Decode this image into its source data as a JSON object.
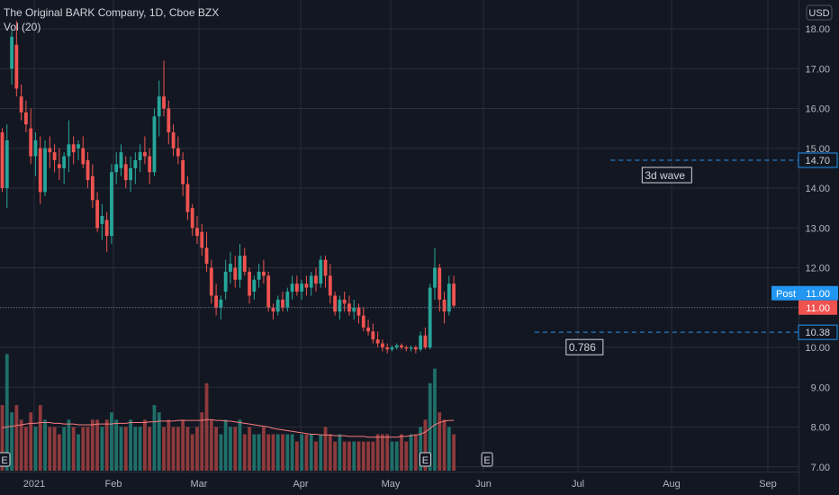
{
  "header": {
    "symbol_line": "The Original BARK Company, 1D, Cboe BZX",
    "volume_label": "Vol (20)",
    "currency": "USD"
  },
  "chart_data": {
    "type": "candlestick",
    "y_ticks": [
      "18.00",
      "17.00",
      "16.00",
      "15.00",
      "14.00",
      "13.00",
      "12.00",
      "11.00",
      "10.00",
      "9.00",
      "8.00",
      "7.00"
    ],
    "x_ticks": [
      "2021",
      "Feb",
      "Mar",
      "Apr",
      "May",
      "Jun",
      "Jul",
      "Aug",
      "Sep"
    ],
    "ylim": [
      6.85,
      18.3
    ],
    "colors": {
      "up": "#26a69a",
      "down": "#ef5350",
      "vol_ma": "#f77c80",
      "level": "#2196f3",
      "badge": "#2196f3",
      "crosshair": "#9598a1"
    },
    "candles": [
      [
        15.4,
        15.5,
        13.9,
        14.0
      ],
      [
        14.0,
        15.6,
        13.5,
        15.2
      ],
      [
        17.0,
        18.0,
        16.6,
        17.8
      ],
      [
        17.6,
        18.2,
        16.3,
        16.5
      ],
      [
        16.3,
        16.6,
        15.7,
        15.9
      ],
      [
        15.9,
        16.2,
        15.4,
        15.6
      ],
      [
        15.5,
        16.0,
        14.6,
        14.8
      ],
      [
        14.8,
        15.4,
        14.3,
        15.2
      ],
      [
        15.0,
        15.3,
        13.6,
        13.9
      ],
      [
        13.9,
        15.2,
        13.8,
        15.0
      ],
      [
        15.0,
        15.3,
        14.5,
        14.9
      ],
      [
        14.9,
        15.1,
        14.4,
        14.7
      ],
      [
        14.6,
        15.0,
        14.2,
        14.5
      ],
      [
        14.5,
        14.9,
        14.1,
        14.8
      ],
      [
        14.8,
        15.7,
        14.4,
        15.1
      ],
      [
        15.1,
        15.3,
        14.6,
        14.9
      ],
      [
        15.0,
        15.2,
        14.7,
        15.1
      ],
      [
        15.0,
        15.3,
        14.5,
        14.6
      ],
      [
        14.7,
        14.9,
        14.0,
        14.2
      ],
      [
        14.3,
        14.6,
        13.5,
        13.7
      ],
      [
        13.7,
        13.9,
        12.9,
        13.0
      ],
      [
        13.1,
        13.6,
        12.7,
        13.3
      ],
      [
        13.2,
        13.4,
        12.4,
        12.8
      ],
      [
        12.8,
        14.6,
        12.6,
        14.4
      ],
      [
        14.4,
        14.9,
        14.1,
        14.6
      ],
      [
        14.5,
        15.1,
        14.3,
        14.9
      ],
      [
        14.6,
        14.8,
        14.0,
        14.2
      ],
      [
        14.2,
        14.8,
        13.9,
        14.5
      ],
      [
        14.5,
        14.9,
        14.1,
        14.7
      ],
      [
        14.7,
        15.1,
        14.4,
        14.9
      ],
      [
        14.9,
        15.3,
        14.6,
        14.8
      ],
      [
        14.8,
        15.0,
        14.1,
        14.4
      ],
      [
        14.4,
        16.0,
        14.3,
        15.8
      ],
      [
        15.8,
        16.7,
        15.3,
        16.3
      ],
      [
        16.3,
        17.2,
        15.8,
        16.0
      ],
      [
        16.0,
        16.2,
        15.1,
        15.4
      ],
      [
        15.4,
        15.6,
        14.8,
        15.0
      ],
      [
        15.0,
        15.3,
        14.6,
        14.8
      ],
      [
        14.7,
        14.9,
        13.8,
        14.1
      ],
      [
        14.1,
        14.3,
        13.2,
        13.4
      ],
      [
        13.5,
        13.6,
        12.8,
        13.0
      ],
      [
        13.0,
        13.3,
        12.6,
        12.8
      ],
      [
        12.9,
        13.1,
        12.3,
        12.5
      ],
      [
        12.5,
        12.9,
        11.9,
        12.1
      ],
      [
        12.0,
        12.2,
        11.1,
        11.3
      ],
      [
        11.3,
        11.6,
        10.8,
        11.0
      ],
      [
        11.0,
        11.3,
        10.7,
        11.2
      ],
      [
        11.4,
        12.2,
        11.2,
        11.9
      ],
      [
        11.9,
        12.4,
        11.6,
        12.1
      ],
      [
        12.0,
        12.3,
        11.5,
        11.7
      ],
      [
        11.7,
        12.6,
        11.5,
        12.3
      ],
      [
        12.3,
        12.5,
        11.8,
        11.9
      ],
      [
        11.9,
        12.0,
        11.1,
        11.3
      ],
      [
        11.4,
        11.8,
        11.2,
        11.7
      ],
      [
        11.7,
        12.1,
        11.5,
        11.9
      ],
      [
        11.9,
        12.2,
        11.6,
        11.8
      ],
      [
        11.8,
        11.9,
        10.9,
        11.0
      ],
      [
        11.0,
        11.1,
        10.7,
        10.9
      ],
      [
        10.9,
        11.3,
        10.8,
        11.2
      ],
      [
        11.2,
        11.4,
        10.9,
        11.0
      ],
      [
        11.0,
        11.5,
        10.9,
        11.4
      ],
      [
        11.4,
        11.8,
        11.2,
        11.6
      ],
      [
        11.6,
        11.8,
        11.3,
        11.4
      ],
      [
        11.4,
        11.7,
        11.2,
        11.6
      ],
      [
        11.6,
        11.8,
        11.3,
        11.5
      ],
      [
        11.5,
        11.9,
        11.3,
        11.8
      ],
      [
        11.8,
        12.0,
        11.4,
        11.6
      ],
      [
        11.6,
        12.3,
        11.5,
        12.2
      ],
      [
        12.2,
        12.3,
        11.5,
        11.8
      ],
      [
        11.8,
        12.1,
        11.1,
        11.3
      ],
      [
        11.3,
        11.4,
        10.8,
        10.9
      ],
      [
        10.9,
        11.3,
        10.7,
        11.2
      ],
      [
        11.2,
        11.4,
        10.9,
        11.1
      ],
      [
        11.1,
        11.3,
        10.8,
        10.9
      ],
      [
        10.9,
        11.2,
        10.7,
        11.0
      ],
      [
        11.0,
        11.1,
        10.6,
        10.8
      ],
      [
        10.8,
        11.0,
        10.4,
        10.5
      ],
      [
        10.5,
        10.7,
        10.3,
        10.4
      ],
      [
        10.4,
        10.6,
        10.1,
        10.2
      ],
      [
        10.2,
        10.4,
        10.0,
        10.1
      ],
      [
        10.1,
        10.2,
        9.9,
        10.0
      ],
      [
        10.0,
        10.1,
        9.85,
        9.95
      ],
      [
        9.95,
        10.05,
        9.9,
        10.0
      ],
      [
        10.0,
        10.1,
        9.95,
        10.05
      ],
      [
        10.05,
        10.1,
        9.95,
        10.0
      ],
      [
        10.0,
        10.05,
        9.9,
        9.97
      ],
      [
        9.97,
        10.05,
        9.9,
        10.0
      ],
      [
        10.0,
        10.05,
        9.85,
        9.95
      ],
      [
        9.95,
        10.4,
        9.9,
        10.3
      ],
      [
        10.3,
        10.5,
        9.95,
        10.0
      ],
      [
        10.0,
        11.6,
        9.95,
        11.5
      ],
      [
        11.5,
        12.5,
        11.2,
        12.0
      ],
      [
        12.0,
        12.1,
        10.9,
        11.2
      ],
      [
        11.2,
        11.4,
        10.6,
        10.9
      ],
      [
        10.9,
        11.8,
        10.8,
        11.6
      ],
      [
        11.6,
        11.8,
        11.0,
        11.05
      ]
    ],
    "volumes": [
      9,
      16,
      8,
      9,
      7,
      6,
      8,
      6,
      9,
      7,
      6,
      6,
      5,
      6,
      7,
      6,
      5,
      6,
      6,
      7,
      7,
      6,
      7,
      8,
      7,
      6,
      6,
      7,
      6,
      6,
      7,
      6,
      9,
      8,
      6,
      7,
      6,
      6,
      7,
      6,
      5,
      6,
      8,
      12,
      7,
      6,
      5,
      7,
      6,
      6,
      7,
      5,
      6,
      5,
      5,
      6,
      5,
      5,
      5,
      5,
      5,
      5,
      4,
      5,
      5,
      5,
      4,
      5,
      6,
      5,
      4,
      5,
      4,
      4,
      4,
      4,
      4,
      4,
      4,
      5,
      5,
      5,
      4,
      4,
      5,
      4,
      5,
      5,
      6,
      7,
      12,
      14,
      8,
      7,
      6,
      5
    ],
    "volume_ma": [
      5.9,
      6.0,
      6.1,
      6.2,
      6.3,
      6.4,
      6.5,
      6.5,
      6.6,
      6.6,
      6.6,
      6.5,
      6.5,
      6.4,
      6.4,
      6.4,
      6.3,
      6.3,
      6.3,
      6.3,
      6.4,
      6.4,
      6.4,
      6.4,
      6.5,
      6.5,
      6.5,
      6.6,
      6.6,
      6.6,
      6.6,
      6.7,
      6.7,
      6.8,
      6.8,
      6.8,
      6.8,
      6.9,
      6.9,
      6.9,
      6.9,
      6.9,
      6.9,
      7.0,
      7.0,
      6.9,
      6.9,
      6.8,
      6.8,
      6.7,
      6.6,
      6.5,
      6.4,
      6.3,
      6.2,
      6.1,
      6.0,
      5.8,
      5.7,
      5.6,
      5.5,
      5.4,
      5.3,
      5.2,
      5.1,
      5.0,
      5.0,
      4.9,
      4.9,
      4.9,
      4.8,
      4.8,
      4.8,
      4.7,
      4.7,
      4.7,
      4.7,
      4.6,
      4.6,
      4.6,
      4.6,
      4.6,
      4.6,
      4.6,
      4.7,
      4.7,
      4.8,
      4.9,
      5.0,
      5.3,
      5.8,
      6.3,
      6.6,
      6.8,
      6.9,
      6.9
    ],
    "levels": [
      {
        "price": 14.7,
        "label": "14.70",
        "annotation": "3d wave",
        "start_index": 128
      },
      {
        "price": 10.38,
        "label": "10.38",
        "annotation": "0.786",
        "start_index": 112
      }
    ],
    "last_price": {
      "tag": "Post",
      "value": "11.00",
      "price": 11.0
    },
    "earnings_markers": [
      {
        "index": 0,
        "label": "E"
      },
      {
        "index": 89,
        "label": "E"
      },
      {
        "index": 102,
        "label": "E"
      }
    ]
  }
}
